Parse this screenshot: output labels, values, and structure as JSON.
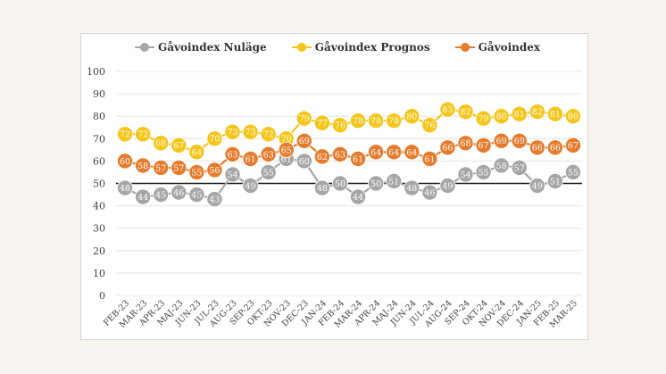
{
  "chart_data": {
    "type": "line",
    "title": "",
    "xlabel": "",
    "ylabel": "",
    "ylim": [
      0,
      100
    ],
    "yticks": [
      0,
      10,
      20,
      30,
      40,
      50,
      60,
      70,
      80,
      90,
      100
    ],
    "reference_line": 50,
    "legend_position": "top",
    "categories": [
      "FEB-23",
      "MAR-23",
      "APR-23",
      "MAJ-23",
      "JUN-23",
      "JUL-23",
      "AUG-23",
      "SEP-23",
      "OKT-23",
      "NOV-23",
      "DEC-23",
      "JAN-24",
      "FEB-24",
      "MAR-24",
      "APR-24",
      "MAJ-24",
      "JUN-24",
      "JUL-24",
      "AUG-24",
      "SEP-24",
      "OKT-24",
      "NOV-24",
      "DEC-24",
      "JAN-25",
      "FEB-25",
      "MAR-25"
    ],
    "series": [
      {
        "name": "Gåvoindex Nuläge",
        "color": "#a6a6a6",
        "label_color": "#ffffff",
        "values": [
          48,
          44,
          45,
          46,
          45,
          43,
          54,
          49,
          55,
          61,
          60,
          48,
          50,
          44,
          50,
          51,
          48,
          46,
          49,
          54,
          55,
          58,
          57,
          49,
          51,
          55
        ]
      },
      {
        "name": "Gåvoindex Prognos",
        "color": "#f5c518",
        "label_color": "#ffffff",
        "values": [
          72,
          72,
          68,
          67,
          64,
          70,
          73,
          73,
          72,
          70,
          79,
          77,
          76,
          78,
          78,
          78,
          80,
          76,
          83,
          82,
          79,
          80,
          81,
          82,
          81,
          80
        ]
      },
      {
        "name": "Gåvoindex",
        "color": "#e57c2d",
        "label_color": "#ffffff",
        "values": [
          60,
          58,
          57,
          57,
          55,
          56,
          63,
          61,
          63,
          65,
          69,
          62,
          63,
          61,
          64,
          64,
          64,
          61,
          66,
          68,
          67,
          69,
          69,
          66,
          66,
          67
        ]
      }
    ]
  }
}
